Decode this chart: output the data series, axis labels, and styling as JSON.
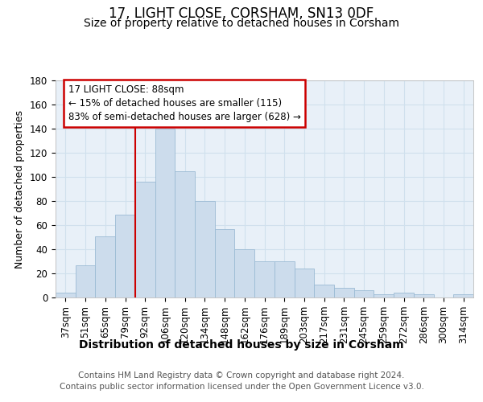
{
  "title": "17, LIGHT CLOSE, CORSHAM, SN13 0DF",
  "subtitle": "Size of property relative to detached houses in Corsham",
  "xlabel": "Distribution of detached houses by size in Corsham",
  "ylabel": "Number of detached properties",
  "categories": [
    "37sqm",
    "51sqm",
    "65sqm",
    "79sqm",
    "92sqm",
    "106sqm",
    "120sqm",
    "134sqm",
    "148sqm",
    "162sqm",
    "176sqm",
    "189sqm",
    "203sqm",
    "217sqm",
    "231sqm",
    "245sqm",
    "259sqm",
    "272sqm",
    "286sqm",
    "300sqm",
    "314sqm"
  ],
  "values": [
    4,
    27,
    51,
    69,
    96,
    140,
    105,
    80,
    57,
    40,
    30,
    30,
    24,
    11,
    8,
    6,
    3,
    4,
    3,
    0,
    3
  ],
  "bar_color": "#ccdcec",
  "bar_edge_color": "#9bbbd4",
  "grid_color": "#d0e0ed",
  "background_color": "#e8f0f8",
  "vline_index": 4,
  "vline_color": "#cc0000",
  "ann_line1": "17 LIGHT CLOSE: 88sqm",
  "ann_line2": "← 15% of detached houses are smaller (115)",
  "ann_line3": "83% of semi-detached houses are larger (628) →",
  "annotation_box_color": "#cc0000",
  "ylim": [
    0,
    180
  ],
  "yticks": [
    0,
    20,
    40,
    60,
    80,
    100,
    120,
    140,
    160,
    180
  ],
  "footer_line1": "Contains HM Land Registry data © Crown copyright and database right 2024.",
  "footer_line2": "Contains public sector information licensed under the Open Government Licence v3.0.",
  "title_fontsize": 12,
  "subtitle_fontsize": 10,
  "xlabel_fontsize": 10,
  "ylabel_fontsize": 9,
  "tick_fontsize": 8.5,
  "footer_fontsize": 7.5
}
